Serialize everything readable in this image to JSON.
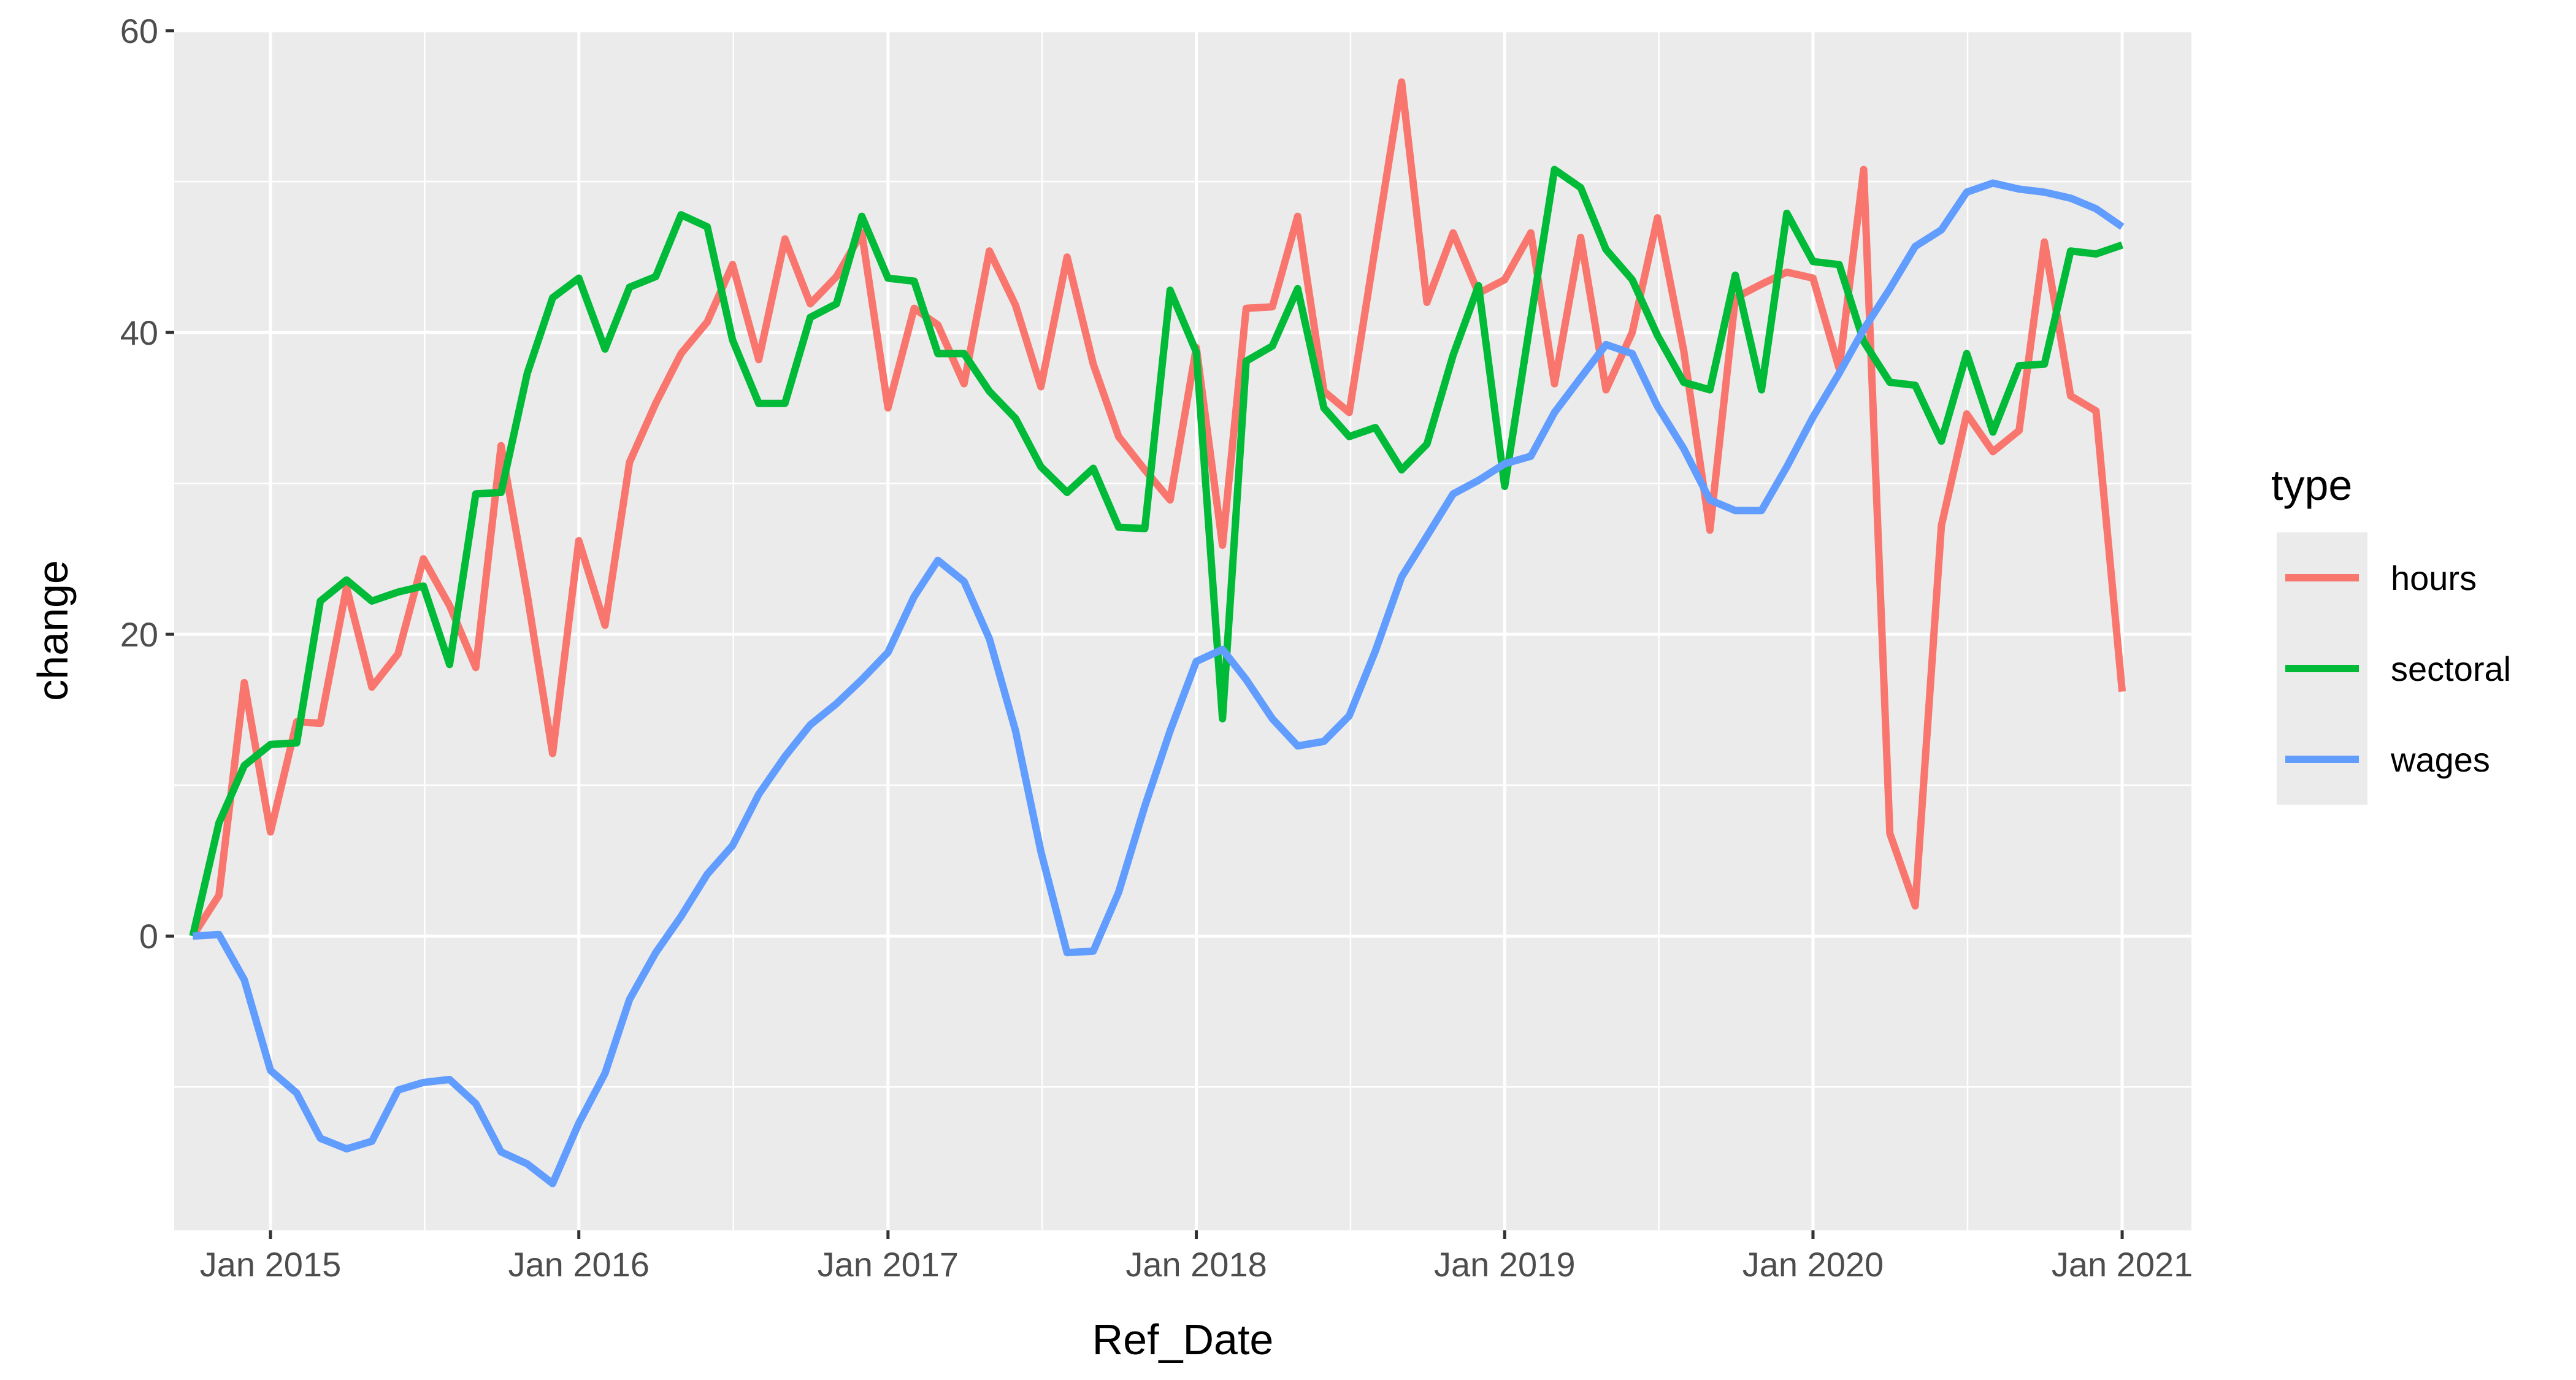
{
  "chart_data": {
    "type": "line",
    "title": "",
    "xlabel": "Ref_Date",
    "ylabel": "change",
    "x_tick_labels": [
      "Jan 2015",
      "Jan 2016",
      "Jan 2017",
      "Jan 2018",
      "Jan 2019",
      "Jan 2020",
      "Jan 2021"
    ],
    "y_tick_labels": [
      "0",
      "20",
      "40",
      "60"
    ],
    "ylim": [
      -19.5,
      60
    ],
    "xlim": [
      "2014-09-09",
      "2021-03-24"
    ],
    "x": [
      "2014-10",
      "2014-11",
      "2014-12",
      "2015-01",
      "2015-02",
      "2015-03",
      "2015-04",
      "2015-05",
      "2015-06",
      "2015-07",
      "2015-08",
      "2015-09",
      "2015-10",
      "2015-11",
      "2015-12",
      "2016-01",
      "2016-02",
      "2016-03",
      "2016-04",
      "2016-05",
      "2016-06",
      "2016-07",
      "2016-08",
      "2016-09",
      "2016-10",
      "2016-11",
      "2016-12",
      "2017-01",
      "2017-02",
      "2017-03",
      "2017-04",
      "2017-05",
      "2017-06",
      "2017-07",
      "2017-08",
      "2017-09",
      "2017-10",
      "2017-11",
      "2017-12",
      "2018-01",
      "2018-02",
      "2018-03",
      "2018-04",
      "2018-05",
      "2018-06",
      "2018-07",
      "2018-08",
      "2018-09",
      "2018-10",
      "2018-11",
      "2018-12",
      "2019-01",
      "2019-02",
      "2019-03",
      "2019-04",
      "2019-05",
      "2019-06",
      "2019-07",
      "2019-08",
      "2019-09",
      "2019-10",
      "2019-11",
      "2019-12",
      "2020-01",
      "2020-02",
      "2020-03",
      "2020-04",
      "2020-05",
      "2020-06",
      "2020-07",
      "2020-08",
      "2020-09",
      "2020-10",
      "2020-11",
      "2020-12",
      "2021-01"
    ],
    "series": [
      {
        "name": "hours",
        "color": "#F8766D",
        "values": [
          0,
          2.7,
          16.8,
          6.9,
          14.2,
          14.1,
          23.1,
          16.5,
          18.7,
          25,
          21.9,
          17.8,
          32.5,
          22.6,
          12.1,
          26.2,
          20.6,
          31.4,
          35.3,
          38.6,
          40.7,
          44.5,
          38.2,
          46.2,
          41.9,
          43.7,
          46.6,
          35,
          41.6,
          40.5,
          36.6,
          45.4,
          41.8,
          36.4,
          45,
          37.9,
          33.1,
          30.9,
          28.9,
          39,
          25.9,
          41.6,
          41.7,
          47.7,
          36.1,
          34.7,
          45.7,
          56.6,
          42,
          46.6,
          42.6,
          43.5,
          46.6,
          36.6,
          46.3,
          36.2,
          40,
          47.6,
          38.8,
          26.9,
          42.3,
          43.2,
          44,
          43.6,
          37.6,
          50.8,
          6.8,
          2,
          27.2,
          34.6,
          32.1,
          33.5,
          46,
          35.8,
          34.8,
          16.2
        ]
      },
      {
        "name": "sectoral",
        "color": "#00BA38",
        "values": [
          0,
          7.5,
          11.3,
          12.7,
          12.8,
          22.2,
          23.6,
          22.2,
          22.8,
          23.2,
          18,
          29.3,
          29.4,
          37.3,
          42.3,
          43.6,
          38.9,
          43,
          43.7,
          47.8,
          47,
          39.5,
          35.3,
          35.3,
          41,
          41.9,
          47.7,
          43.6,
          43.4,
          38.6,
          38.6,
          36.1,
          34.3,
          31.1,
          29.4,
          31,
          27.1,
          27,
          42.8,
          38.7,
          14.4,
          38.1,
          39.1,
          42.9,
          35,
          33.1,
          33.7,
          30.9,
          32.6,
          38.5,
          43.1,
          29.8,
          40.9,
          50.8,
          49.6,
          45.5,
          43.5,
          39.8,
          36.7,
          36.2,
          43.8,
          36.2,
          47.9,
          44.7,
          44.5,
          39.4,
          36.7,
          36.5,
          32.8,
          38.6,
          33.4,
          37.8,
          37.9,
          45.4,
          45.2,
          45.8
        ]
      },
      {
        "name": "wages",
        "color": "#619CFF",
        "values": [
          0,
          0.1,
          -2.9,
          -8.9,
          -10.4,
          -13.4,
          -14.1,
          -13.6,
          -10.2,
          -9.7,
          -9.5,
          -11.1,
          -14.3,
          -15.1,
          -16.4,
          -12.4,
          -9.1,
          -4.2,
          -1.1,
          1.3,
          4.1,
          6,
          9.4,
          11.9,
          14,
          15.4,
          17,
          18.8,
          22.5,
          24.9,
          23.5,
          19.7,
          13.6,
          5.6,
          -1.1,
          -1,
          2.9,
          8.6,
          13.6,
          18.2,
          19,
          17,
          14.4,
          12.6,
          12.9,
          14.6,
          18.9,
          23.8,
          26.5,
          29.3,
          30.2,
          31.3,
          31.8,
          34.7,
          37,
          39.2,
          38.6,
          35.1,
          32.3,
          28.9,
          28.2,
          28.2,
          31.1,
          34.4,
          37.3,
          40.2,
          42.9,
          45.7,
          46.8,
          49.3,
          49.9,
          49.5,
          49.3,
          48.9,
          48.2,
          47
        ]
      }
    ],
    "grid": true,
    "legend": {
      "title": "type",
      "placement": "right"
    }
  }
}
